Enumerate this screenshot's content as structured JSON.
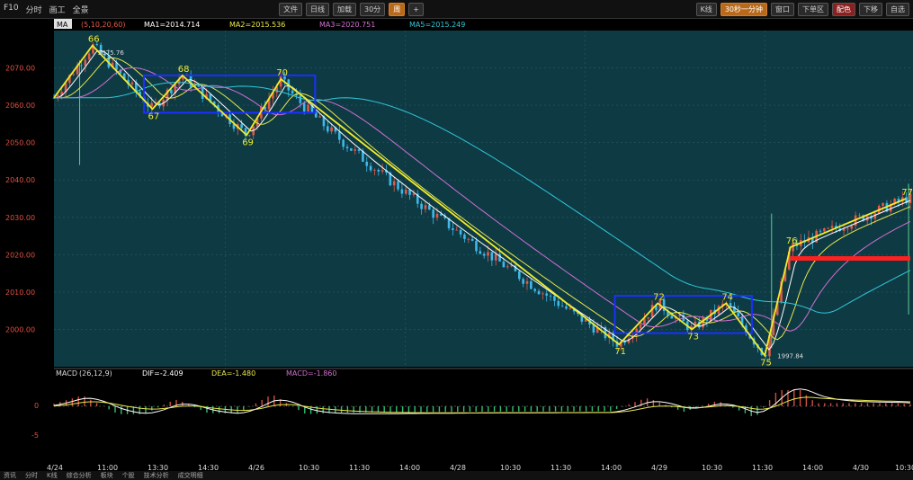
{
  "toolbar": {
    "left": [
      "F10",
      "分时",
      "画工",
      "全景"
    ],
    "mid": [
      "文件",
      "日线",
      "加载",
      "30分",
      "周",
      "+"
    ],
    "right": [
      "K线",
      "30秒一分钟",
      "窗口",
      "下单区",
      "配色",
      "下移",
      "自选"
    ]
  },
  "indicators": {
    "main_tag": "MA",
    "ma_params": "(5,10,20,60)",
    "ma1": "MA1=2014.714",
    "ma2": "MA2=2015.536",
    "ma3": "MA3=2020.751",
    "ma5": "MA5=2015.249",
    "macd_name": "MACD",
    "macd_params": "(26,12,9)",
    "dif": "DIF=-2.409",
    "dea": "DEA=-1.480",
    "macd": "MACD=-1.860"
  },
  "colors": {
    "bg": "#0e3a44",
    "grid": "#2a5a64",
    "up": "#e05a4a",
    "down": "#3fb8e8",
    "wave": "#f2ec2a",
    "ma1": "#ffffff",
    "ma2": "#e8e84a",
    "ma3": "#d070d0",
    "ma4": "#30c8d8",
    "box": "#1a30ff",
    "resist": "#ff2020",
    "macd_bg": "#000000"
  },
  "bottom_tabs": [
    "资讯",
    "分时",
    "K线",
    "综合分析",
    "板块",
    "个股",
    "技术分析",
    "成交明细"
  ],
  "chart_data": {
    "type": "candlestick",
    "y_axis_label_color": "#e05040",
    "yticks": [
      2070,
      2060,
      2050,
      2040,
      2030,
      2020,
      2010,
      2000
    ],
    "ylim": [
      1990,
      2080
    ],
    "annotations": {
      "high_label": "2075.76",
      "low_label": "1997.84"
    },
    "wave_points": [
      {
        "label": "66",
        "x": 0.045,
        "y": 2076
      },
      {
        "label": "67",
        "x": 0.115,
        "y": 2059
      },
      {
        "label": "68",
        "x": 0.15,
        "y": 2068
      },
      {
        "label": "69",
        "x": 0.225,
        "y": 2052
      },
      {
        "label": "70",
        "x": 0.265,
        "y": 2067
      },
      {
        "label": "71",
        "x": 0.66,
        "y": 1996
      },
      {
        "label": "72",
        "x": 0.705,
        "y": 2007
      },
      {
        "label": "73",
        "x": 0.745,
        "y": 2000
      },
      {
        "label": "74",
        "x": 0.785,
        "y": 2007
      },
      {
        "label": "75",
        "x": 0.83,
        "y": 1993
      },
      {
        "label": "76",
        "x": 0.86,
        "y": 2022
      },
      {
        "label": "77",
        "x": 0.995,
        "y": 2035
      }
    ],
    "boxes": [
      {
        "x0": 0.105,
        "x1": 0.305,
        "y0": 2058,
        "y1": 2068
      },
      {
        "x0": 0.655,
        "x1": 0.815,
        "y0": 1999,
        "y1": 2009
      }
    ],
    "resistance": {
      "x0": 0.86,
      "x1": 1.0,
      "y": 2019
    },
    "macd_ticks": [
      "0",
      "-5"
    ],
    "x_labels": [
      "4/24",
      "11:00",
      "13:30",
      "14:30",
      "4/26",
      "10:30",
      "11:30",
      "14:00",
      "4/28",
      "10:30",
      "11:30",
      "14:00",
      "4/29",
      "10:30",
      "11:30",
      "14:00",
      "4/30",
      "10:30"
    ]
  }
}
